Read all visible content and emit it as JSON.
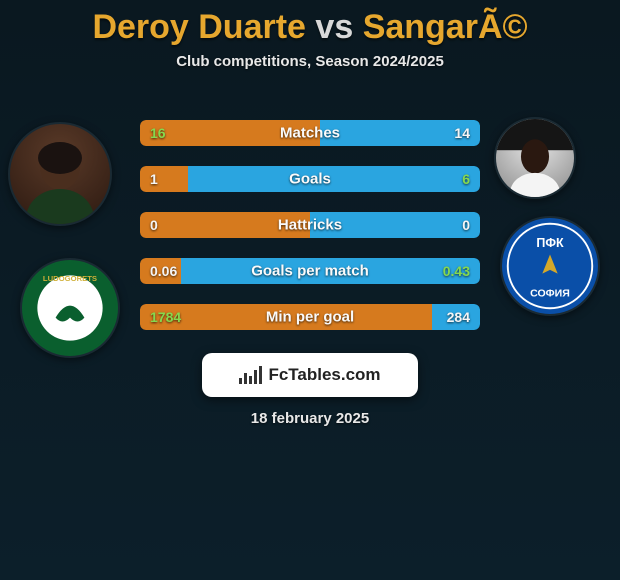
{
  "title": {
    "player1": "Deroy Duarte",
    "vs": "vs",
    "player2": "SangarÃ©",
    "color1": "#e6a72e",
    "color_vs": "#d8d8d8",
    "color2": "#e6a72e"
  },
  "subtitle": "Club competitions, Season 2024/2025",
  "stats": [
    {
      "label": "Matches",
      "p1": "16",
      "p2": "14",
      "left_pct": 53,
      "val_color_left": "#86d84e",
      "val_color_right": "#f5f5f5"
    },
    {
      "label": "Goals",
      "p1": "1",
      "p2": "6",
      "left_pct": 14,
      "val_color_left": "#f5f5f5",
      "val_color_right": "#86d84e"
    },
    {
      "label": "Hattricks",
      "p1": "0",
      "p2": "0",
      "left_pct": 50,
      "val_color_left": "#f5f5f5",
      "val_color_right": "#f5f5f5"
    },
    {
      "label": "Goals per match",
      "p1": "0.06",
      "p2": "0.43",
      "left_pct": 12,
      "val_color_left": "#f5f5f5",
      "val_color_right": "#86d84e"
    },
    {
      "label": "Min per goal",
      "p1": "1784",
      "p2": "284",
      "left_pct": 86,
      "val_color_left": "#86d84e",
      "val_color_right": "#f5f5f5"
    }
  ],
  "bar_color_left": "#d67a1e",
  "bar_color_right": "#2aa5e0",
  "brand": "FcTables.com",
  "date": "18 february 2025",
  "avatars": {
    "p1_name": "player1-avatar",
    "p2_name": "player2-avatar",
    "c1_name": "club1-crest",
    "c2_name": "club2-crest"
  }
}
